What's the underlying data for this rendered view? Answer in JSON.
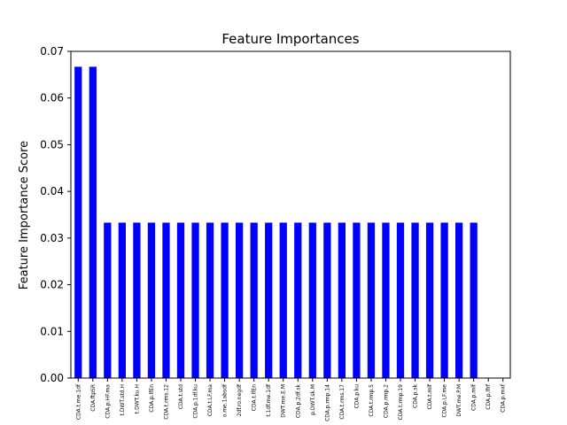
{
  "chart_data": {
    "type": "bar",
    "title": "Feature Importances",
    "xlabel": "",
    "ylabel": "Feature Importance Score",
    "ylim": [
      0,
      0.07
    ],
    "yticks": [
      "0.00",
      "0.01",
      "0.02",
      "0.03",
      "0.04",
      "0.05",
      "0.06",
      "0.07"
    ],
    "grid": false,
    "legend": "none",
    "bar_color": "#0000ff",
    "categories": [
      "CDA.t.me.1df",
      "CDA.ftpSR",
      "CDA.p.HF.ma",
      "t.DWT.std.H",
      "t.DWT.ku.H",
      "CDA.p.lfEn",
      "CDA.t.rms.12",
      "CDA.t.std",
      "CDA.p.1df.ku",
      "CDA.t.LF.ma",
      "o.me.1absdf",
      "2df.ro.negdf",
      "CDA.t.lfEn",
      "t.1df.me.1df",
      "DWT.me.E.M",
      "CDA.p.2df.sk",
      "p.DWT.sk.M",
      "CDA.p.rmp.14",
      "CDA.t.rms.17",
      "CDA.p.ku",
      "CDA.t.rmp.5",
      "CDA.p.rmp.2",
      "CDA.t.rmp.19",
      "CDA.p.sk",
      "CDA.t.mlf",
      "CDA.p.LF.me",
      "DWT.me.P.M",
      "CDA.p.mlf",
      "CDA.p.lfrf",
      "CDA.p.mxf"
    ],
    "values": [
      0.0667,
      0.0667,
      0.0333,
      0.0333,
      0.0333,
      0.0333,
      0.0333,
      0.0333,
      0.0333,
      0.0333,
      0.0333,
      0.0333,
      0.0333,
      0.0333,
      0.0333,
      0.0333,
      0.0333,
      0.0333,
      0.0333,
      0.0333,
      0.0333,
      0.0333,
      0.0333,
      0.0333,
      0.0333,
      0.0333,
      0.0333,
      0.0333,
      0.0,
      0.0
    ]
  }
}
